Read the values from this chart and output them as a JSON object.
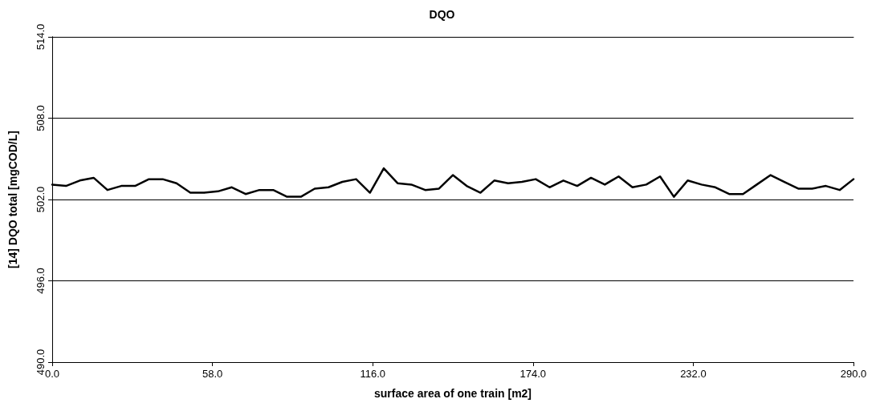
{
  "chart_data": {
    "type": "line",
    "title": "DQO",
    "xlabel": "surface area of one train [m2]",
    "ylabel": "[14] DQO total [mgCOD/L]",
    "x": [
      0,
      5,
      10,
      15,
      20,
      25,
      30,
      35,
      40,
      45,
      50,
      55,
      60,
      65,
      70,
      75,
      80,
      85,
      90,
      95,
      100,
      105,
      110,
      115,
      120,
      125,
      130,
      135,
      140,
      145,
      150,
      155,
      160,
      165,
      170,
      175,
      180,
      185,
      190,
      195,
      200,
      205,
      210,
      215,
      220,
      225,
      230,
      235,
      240,
      245,
      250,
      255,
      260,
      265,
      270,
      275,
      280,
      285,
      290
    ],
    "series": [
      {
        "color": "#000000",
        "values": [
          503.1,
          503.0,
          503.4,
          503.6,
          502.7,
          503.0,
          503.0,
          503.5,
          503.5,
          503.2,
          502.5,
          502.5,
          502.6,
          502.9,
          502.4,
          502.7,
          502.7,
          502.2,
          502.2,
          502.8,
          502.9,
          503.3,
          503.5,
          502.5,
          504.3,
          503.2,
          503.1,
          502.7,
          502.8,
          503.8,
          503.0,
          502.5,
          503.4,
          503.2,
          503.3,
          503.5,
          502.9,
          503.4,
          503.0,
          503.6,
          503.1,
          503.7,
          502.9,
          503.1,
          503.7,
          502.2,
          503.4,
          503.1,
          502.9,
          502.4,
          502.4,
          503.1,
          503.8,
          503.3,
          502.8,
          502.8,
          503.0,
          502.7,
          503.5
        ]
      }
    ],
    "xlim": [
      0,
      290
    ],
    "xticks": [
      {
        "value": 0,
        "label": "0.0"
      },
      {
        "value": 58,
        "label": "58.0"
      },
      {
        "value": 116,
        "label": "116.0"
      },
      {
        "value": 174,
        "label": "174.0"
      },
      {
        "value": 232,
        "label": "232.0"
      },
      {
        "value": 290,
        "label": "290.0"
      }
    ],
    "ylim": [
      490,
      514
    ],
    "yticks": [
      {
        "value": 490,
        "label": "490.0"
      },
      {
        "value": 496,
        "label": "496.0"
      },
      {
        "value": 502,
        "label": "502.0"
      },
      {
        "value": 508,
        "label": "508.0"
      },
      {
        "value": 514,
        "label": "514.0"
      }
    ],
    "grid": "y",
    "marker": "none",
    "line_style": "solid"
  }
}
